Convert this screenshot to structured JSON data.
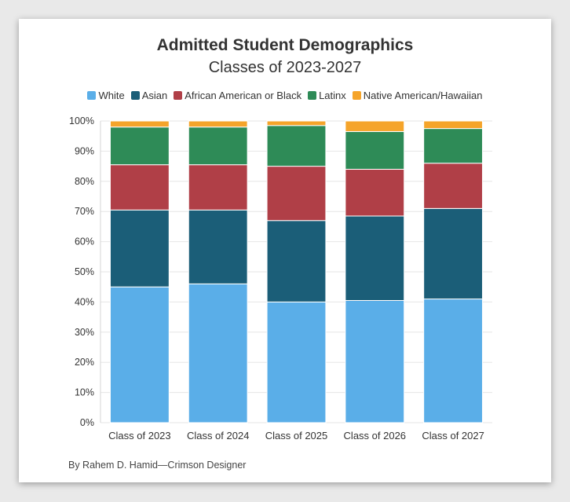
{
  "chart_data": {
    "type": "bar",
    "stacked": true,
    "title": "Admitted Student Demographics",
    "subtitle": "Classes of 2023-2027",
    "categories": [
      "Class of 2023",
      "Class of 2024",
      "Class of 2025",
      "Class of 2026",
      "Class of 2027"
    ],
    "series": [
      {
        "name": "White",
        "color": "#5aaee8",
        "values": [
          45,
          46,
          40,
          40.5,
          41
        ]
      },
      {
        "name": "Asian",
        "color": "#1b5e78",
        "values": [
          25.5,
          24.5,
          27,
          28,
          30
        ]
      },
      {
        "name": "African American or Black",
        "color": "#b03f47",
        "values": [
          15,
          15,
          18,
          15.5,
          15
        ]
      },
      {
        "name": "Latinx",
        "color": "#2e8b57",
        "values": [
          12.5,
          12.5,
          13.5,
          12.5,
          11.5
        ]
      },
      {
        "name": "Native American/Hawaiian",
        "color": "#f5a42a",
        "values": [
          2,
          2,
          1.5,
          3.5,
          2.5
        ]
      }
    ],
    "ylim": [
      0,
      100
    ],
    "yticks": [
      "0%",
      "10%",
      "20%",
      "30%",
      "40%",
      "50%",
      "60%",
      "70%",
      "80%",
      "90%",
      "100%"
    ],
    "grid": true,
    "legend_position": "top"
  },
  "credit": "By Rahem D. Hamid—Crimson Designer"
}
